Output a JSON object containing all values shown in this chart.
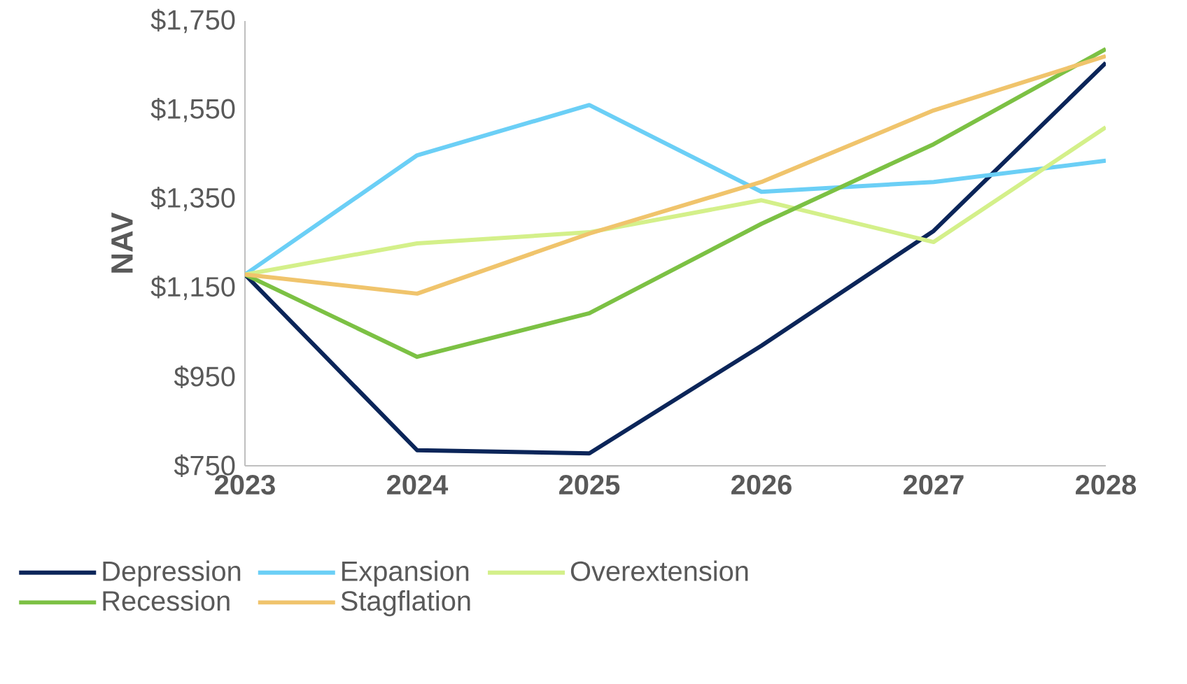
{
  "chart_data": {
    "type": "line",
    "ylabel": "NAV",
    "categories": [
      "2023",
      "2024",
      "2025",
      "2026",
      "2027",
      "2028"
    ],
    "ylim": [
      750,
      1750
    ],
    "yticks": [
      {
        "value": 750,
        "label": "$750"
      },
      {
        "value": 950,
        "label": "$950"
      },
      {
        "value": 1150,
        "label": "$1,150"
      },
      {
        "value": 1350,
        "label": "$1,350"
      },
      {
        "value": 1550,
        "label": "$1,550"
      },
      {
        "value": 1750,
        "label": "$1,750"
      }
    ],
    "series": [
      {
        "name": "Depression",
        "color": "#0b2559",
        "values": [
          1180,
          785,
          778,
          1020,
          1278,
          1656
        ]
      },
      {
        "name": "Expansion",
        "color": "#6bcff6",
        "values": [
          1180,
          1448,
          1561,
          1366,
          1388,
          1436
        ]
      },
      {
        "name": "Overextension",
        "color": "#d4f08a",
        "values": [
          1180,
          1250,
          1275,
          1347,
          1253,
          1511
        ]
      },
      {
        "name": "Recession",
        "color": "#7cc144",
        "values": [
          1180,
          995,
          1093,
          1294,
          1473,
          1687
        ]
      },
      {
        "name": "Stagflation",
        "color": "#f0c46c",
        "values": [
          1180,
          1137,
          1272,
          1388,
          1549,
          1671
        ]
      }
    ],
    "grid": false,
    "legend": "bottom",
    "marker": "none",
    "line_style": "solid"
  }
}
